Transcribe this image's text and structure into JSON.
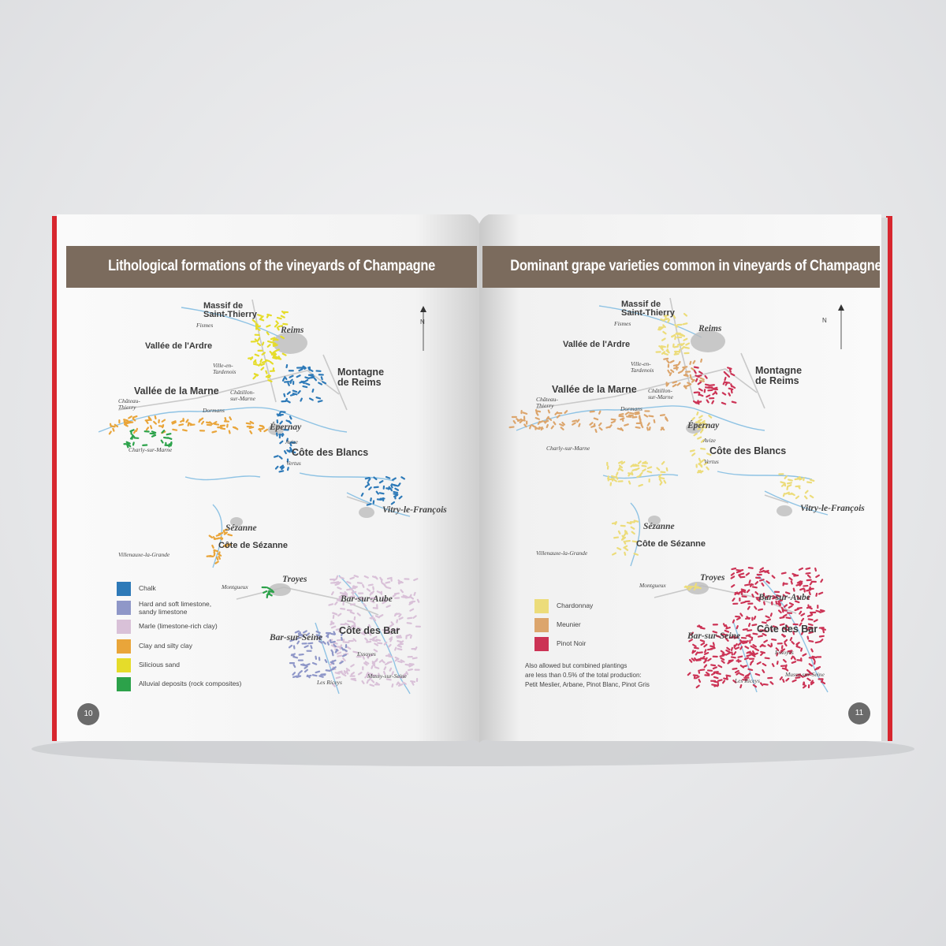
{
  "left_page": {
    "title": "Lithological formations of the vineyards of Champagne",
    "page_number": "10",
    "compass": "N",
    "places": [
      "Massif de\nSaint-Thierry",
      "Fismes",
      "Reims",
      "Vallée de l'Ardre",
      "Ville-en-\nTardenois",
      "Montagne\nde Reims",
      "Vallée de la Marne",
      "Châtillon-\nsur-Marne",
      "Château-\nThierry",
      "Dormans",
      "Épernay",
      "Avize",
      "Côte des Blancs",
      "Vertus",
      "Charly-sur-Marne",
      "Vitry-le-François",
      "Sézanne",
      "Côte de Sézanne",
      "Villenauxe-la-Grande",
      "Troyes",
      "Montgueux",
      "Bar-sur-Aube",
      "Côte des Bar",
      "Bar-sur-Seine",
      "Essoyes",
      "Mussy-sur-Seine",
      "Les Riceys"
    ],
    "legend": [
      {
        "label": "Chalk",
        "color": "#2e7ab8"
      },
      {
        "label": "Hard and soft limestone,\nsandy limestone",
        "color": "#8f97c8"
      },
      {
        "label": "Marle (limestone-rich clay)",
        "color": "#d9c1d8"
      },
      {
        "label": "Clay and silty clay",
        "color": "#e9a53a"
      },
      {
        "label": "Silicious sand",
        "color": "#e5dc2a"
      },
      {
        "label": "Alluvial deposits (rock composites)",
        "color": "#2ca24a"
      }
    ]
  },
  "right_page": {
    "title": "Dominant grape varieties common in vineyards of Champagne",
    "page_number": "11",
    "compass": "N",
    "places": [
      "Massif de\nSaint-Thierry",
      "Fismes",
      "Reims",
      "Vallée de l'Ardre",
      "Ville-en-\nTardenois",
      "Montagne\nde Reims",
      "Vallée de la Marne",
      "Châtillon-\nsur-Marne",
      "Château-\nThierry",
      "Dormans",
      "Épernay",
      "Avize",
      "Côte des Blancs",
      "Vertus",
      "Charly-sur-Marne",
      "Vitry-le-François",
      "Sézanne",
      "Côte de Sézanne",
      "Villenauxe-la-Grande",
      "Troyes",
      "Montgueux",
      "Bar-sur-Aube",
      "Côte des Bar",
      "Bar-sur-Seine",
      "Essoyes",
      "Mussy-sur-Seine",
      "Les Riceys"
    ],
    "legend": [
      {
        "label": "Chardonnay",
        "color": "#ecdc7a"
      },
      {
        "label": "Meunier",
        "color": "#dca56c"
      },
      {
        "label": "Pinot Noir",
        "color": "#cc3355"
      }
    ],
    "note": "Also allowed but combined plantings\nare less than 0.5% of the total production:\nPetit Meslier, Arbane, Pinot Blanc, Pinot Gris"
  }
}
